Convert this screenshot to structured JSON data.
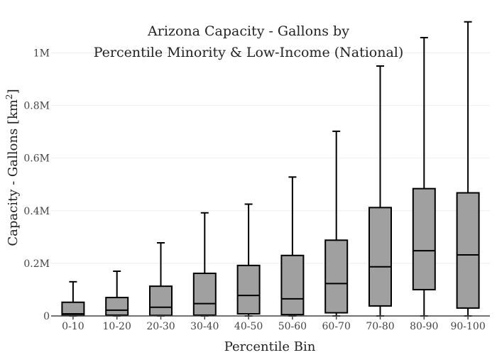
{
  "chart_data": {
    "type": "box",
    "title_lines": [
      "Arizona Capacity - Gallons by",
      "Percentile Minority & Low-Income (National)"
    ],
    "xlabel": "Percentile Bin",
    "ylabel_main": "Capacity - Gallons  [km",
    "ylabel_sup": "2",
    "ylabel_end": "]",
    "ylim": [
      0,
      1120000
    ],
    "y_ticks": [
      {
        "value": 0,
        "label": "0"
      },
      {
        "value": 200000,
        "label": "0.2M"
      },
      {
        "value": 400000,
        "label": "0.4M"
      },
      {
        "value": 600000,
        "label": "0.6M"
      },
      {
        "value": 800000,
        "label": "0.8M"
      },
      {
        "value": 1000000,
        "label": "1M"
      }
    ],
    "grid": true,
    "box_color": "#a0a0a0",
    "categories": [
      "0-10",
      "10-20",
      "20-30",
      "30-40",
      "40-50",
      "50-60",
      "60-70",
      "70-80",
      "80-90",
      "90-100"
    ],
    "boxes": [
      {
        "min": 0,
        "q1": 2000,
        "median": 8000,
        "q3": 52000,
        "max": 130000
      },
      {
        "min": 0,
        "q1": 3000,
        "median": 22000,
        "q3": 70000,
        "max": 170000
      },
      {
        "min": 0,
        "q1": 2000,
        "median": 33000,
        "q3": 113000,
        "max": 278000
      },
      {
        "min": 0,
        "q1": 3000,
        "median": 47000,
        "q3": 162000,
        "max": 392000
      },
      {
        "min": 0,
        "q1": 8000,
        "median": 78000,
        "q3": 192000,
        "max": 425000
      },
      {
        "min": 0,
        "q1": 5000,
        "median": 65000,
        "q3": 230000,
        "max": 528000
      },
      {
        "min": 0,
        "q1": 12000,
        "median": 123000,
        "q3": 288000,
        "max": 702000
      },
      {
        "min": 0,
        "q1": 38000,
        "median": 187000,
        "q3": 412000,
        "max": 950000
      },
      {
        "min": 0,
        "q1": 100000,
        "median": 248000,
        "q3": 484000,
        "max": 1058000
      },
      {
        "min": 0,
        "q1": 30000,
        "median": 232000,
        "q3": 468000,
        "max": 1118000
      }
    ]
  }
}
